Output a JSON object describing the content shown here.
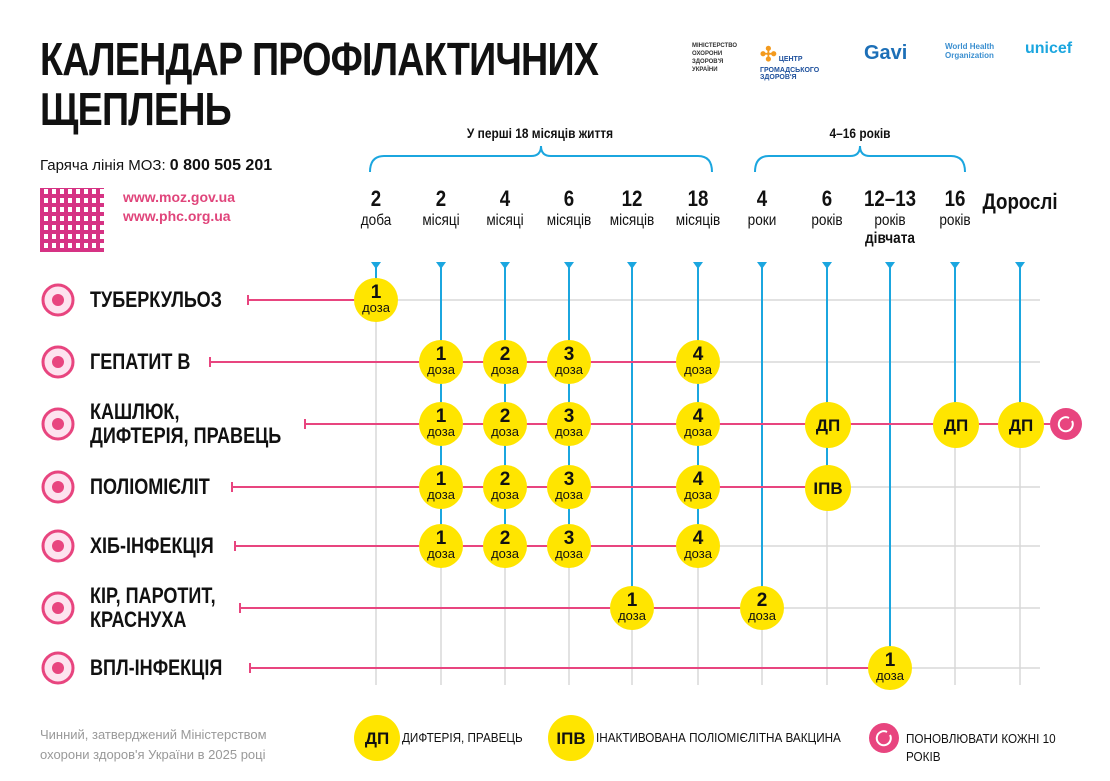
{
  "title": [
    "КАЛЕНДАР ПРОФІЛАКТИЧНИХ",
    "ЩЕПЛЕНЬ"
  ],
  "hotline": {
    "label": "Гаряча лінія МОЗ:",
    "number": "0 800 505 201"
  },
  "links": [
    "www.moz.gov.ua",
    "www.phc.org.ua"
  ],
  "logos": [
    "МІНІСТЕРСТВО ОХОРОНИ ЗДОРОВ'Я УКРАЇНИ",
    "ЦЕНТР ГРОМАДСЬКОГО ЗДОРОВ'Я",
    "Gavi",
    "World Health Organization",
    "unicef"
  ],
  "groups": [
    "У перші 18 місяців життя",
    "4–16 років"
  ],
  "columns": [
    {
      "id": "2d",
      "n": "2",
      "u": "доба"
    },
    {
      "id": "2m",
      "n": "2",
      "u": "місяці"
    },
    {
      "id": "4m",
      "n": "4",
      "u": "місяці"
    },
    {
      "id": "6m",
      "n": "6",
      "u": "місяців"
    },
    {
      "id": "12m",
      "n": "12",
      "u": "місяців"
    },
    {
      "id": "18m",
      "n": "18",
      "u": "місяців"
    },
    {
      "id": "4y",
      "n": "4",
      "u": "роки"
    },
    {
      "id": "6y",
      "n": "6",
      "u": "років"
    },
    {
      "id": "12y",
      "n": "12–13",
      "u": "років",
      "d": "дівчата"
    },
    {
      "id": "16y",
      "n": "16",
      "u": "років"
    },
    {
      "id": "ad",
      "n": "Дорослі",
      "u": ""
    }
  ],
  "rows": [
    {
      "label": [
        "ТУБЕРКУЛЬОЗ"
      ],
      "doses": [
        {
          "age": "2d",
          "n": "1",
          "u": "доза"
        }
      ]
    },
    {
      "label": [
        "ГЕПАТИТ В"
      ],
      "doses": [
        {
          "age": "2m",
          "n": "1",
          "u": "доза"
        },
        {
          "age": "4m",
          "n": "2",
          "u": "доза"
        },
        {
          "age": "6m",
          "n": "3",
          "u": "доза"
        },
        {
          "age": "18m",
          "n": "4",
          "u": "доза"
        }
      ]
    },
    {
      "label": [
        "КАШЛЮК,",
        "ДИФТЕРІЯ, ПРАВЕЦЬ"
      ],
      "repeat": true,
      "doses": [
        {
          "age": "2m",
          "n": "1",
          "u": "доза"
        },
        {
          "age": "4m",
          "n": "2",
          "u": "доза"
        },
        {
          "age": "6m",
          "n": "3",
          "u": "доза"
        },
        {
          "age": "18m",
          "n": "4",
          "u": "доза"
        },
        {
          "age": "6y",
          "n": "ДП",
          "u": ""
        },
        {
          "age": "16y",
          "n": "ДП",
          "u": ""
        },
        {
          "age": "ad",
          "n": "ДП",
          "u": ""
        }
      ]
    },
    {
      "label": [
        "ПОЛІОМІЄЛІТ"
      ],
      "doses": [
        {
          "age": "2m",
          "n": "1",
          "u": "доза"
        },
        {
          "age": "4m",
          "n": "2",
          "u": "доза"
        },
        {
          "age": "6m",
          "n": "3",
          "u": "доза"
        },
        {
          "age": "18m",
          "n": "4",
          "u": "доза"
        },
        {
          "age": "6y",
          "n": "ІПВ",
          "u": ""
        }
      ]
    },
    {
      "label": [
        "ХІБ-ІНФЕКЦІЯ"
      ],
      "doses": [
        {
          "age": "2m",
          "n": "1",
          "u": "доза"
        },
        {
          "age": "4m",
          "n": "2",
          "u": "доза"
        },
        {
          "age": "6m",
          "n": "3",
          "u": "доза"
        },
        {
          "age": "18m",
          "n": "4",
          "u": "доза"
        }
      ]
    },
    {
      "label": [
        "КІР, ПАРОТИТ,",
        "КРАСНУХА"
      ],
      "doses": [
        {
          "age": "12m",
          "n": "1",
          "u": "доза"
        },
        {
          "age": "4y",
          "n": "2",
          "u": "доза"
        }
      ]
    },
    {
      "label": [
        "ВПЛ-ІНФЕКЦІЯ"
      ],
      "doses": [
        {
          "age": "12y",
          "n": "1",
          "u": "доза"
        }
      ]
    }
  ],
  "footer": [
    "Чинний, затверджений Міністерством",
    "охорони здоров'я України в 2025 році"
  ],
  "legend": [
    {
      "mark": "ДП",
      "text": "ДИФТЕРІЯ, ПРАВЕЦЬ"
    },
    {
      "mark": "ІПВ",
      "text": "ІНАКТИВОВАНА ПОЛІОМІЄЛІТНА ВАКЦИНА"
    },
    {
      "mark": "repeat-icon",
      "text": "ПОНОВЛЮВАТИ КОЖНІ 10 РОКІВ"
    }
  ],
  "colors": {
    "pink": "#e8457f",
    "blue": "#1ba6df",
    "yellow": "#ffe500",
    "grid": "#d8d8d8"
  }
}
